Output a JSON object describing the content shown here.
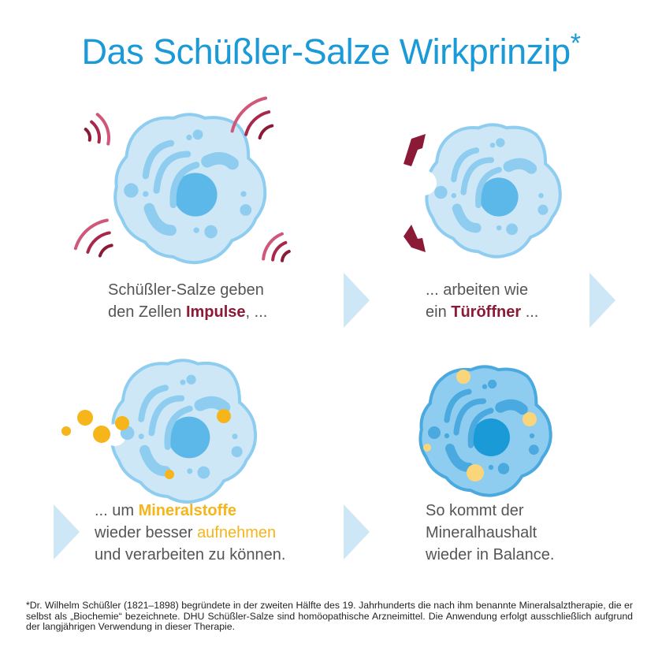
{
  "title": {
    "text": "Das Schüßler-Salze Wirkprinzip",
    "asterisk": "*"
  },
  "colors": {
    "title": "#1b9ad8",
    "accent_red": "#8b1a36",
    "accent_pink": "#d0577a",
    "accent_yellow": "#f5b51b",
    "cell_light": "#cde7f7",
    "cell_dark": "#8fcdf0",
    "nucleus": "#5bb8e8",
    "chevron": "#cde7f7"
  },
  "panels": [
    {
      "line1": "Schüßler-Salze geben",
      "line2_pre": "den Zellen ",
      "line2_bold": "Impulse",
      "line2_post": ", ..."
    },
    {
      "line1": "... arbeiten wie",
      "line2_pre": "ein ",
      "line2_bold": "Türöffner",
      "line2_post": " ..."
    },
    {
      "line1_pre": "... um ",
      "line1_bold": "Mineralstoffe",
      "line2_pre": "wieder besser ",
      "line2_hl": "aufnehmen",
      "line3": "und verarbeiten zu können."
    },
    {
      "line1": "So kommt der",
      "line2": "Mineralhaushalt",
      "line3": "wieder in Balance."
    }
  ],
  "footnote": {
    "marker": "*",
    "text": "Dr. Wilhelm Schüßler (1821–1898) begründete in der zweiten Hälfte des 19. Jahrhunderts die nach ihm benannte Mineralsalztherapie, die er selbst als „Biochemie“ bezeichnete. DHU Schüßler-Salze sind homöopathische Arzneimittel. Die Anwendung erfolgt ausschließlich aufgrund der langjährigen Verwendung in dieser Therapie."
  },
  "icons": [
    "impulse-waves-icon",
    "door-arrows-icon",
    "mineral-dots-icon",
    "balanced-cell-icon",
    "chevron-right-icon"
  ]
}
